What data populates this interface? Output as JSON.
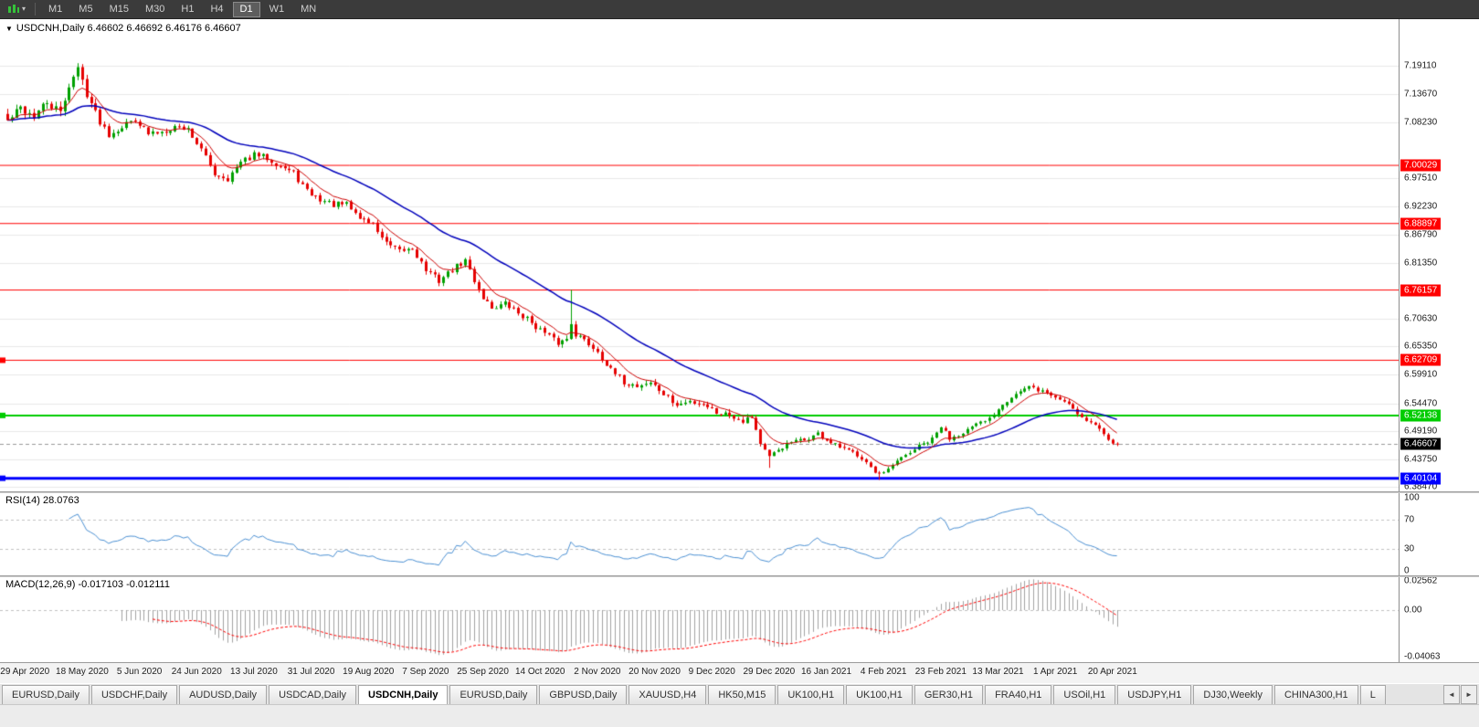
{
  "icons": {
    "chart_menu": "▼",
    "new_chart_caret": "▾",
    "tab_scroll_left": "◄",
    "tab_scroll_right": "►"
  },
  "toolbar": {
    "timeframes": [
      "M1",
      "M5",
      "M15",
      "M30",
      "H1",
      "H4",
      "D1",
      "W1",
      "MN"
    ],
    "active_timeframe": "D1"
  },
  "chart": {
    "title_line": "USDCNH,Daily 6.46602 6.46692 6.46176 6.46607",
    "symbol": "USDCNH",
    "period": "Daily",
    "open": "6.46602",
    "high": "6.46692",
    "low": "6.46176",
    "close": "6.46607"
  },
  "price_axis": {
    "plain_labels": [
      "7.19110",
      "7.13670",
      "7.08230",
      "6.97510",
      "6.92230",
      "6.86790",
      "6.81350",
      "6.70630",
      "6.65350",
      "6.59910",
      "6.54470",
      "6.49190",
      "6.43750",
      "6.38470"
    ],
    "levels": [
      {
        "value": 7.00029,
        "label": "7.00029",
        "color": "#ff0000",
        "width": 1,
        "handle": false
      },
      {
        "value": 6.88897,
        "label": "6.88897",
        "color": "#ff0000",
        "width": 1,
        "handle": false
      },
      {
        "value": 6.76157,
        "label": "6.76157",
        "color": "#ff0000",
        "width": 1,
        "handle": false
      },
      {
        "value": 6.62709,
        "label": "6.62709",
        "color": "#ff0000",
        "width": 1,
        "handle": true
      },
      {
        "value": 6.52138,
        "label": "6.52138",
        "color": "#00cc00",
        "width": 2,
        "handle": true
      },
      {
        "value": 6.40104,
        "label": "6.40104",
        "color": "#0000ff",
        "width": 3,
        "handle": true
      }
    ],
    "current_price": {
      "value": 6.46607,
      "label": "6.46607",
      "color": "#000000"
    }
  },
  "rsi_panel": {
    "label": "RSI(14) 28.0763",
    "period": 14,
    "value": 28.0763,
    "axis_labels": [
      "100",
      "70",
      "30",
      "0"
    ],
    "line_color": "#4a8fd2"
  },
  "macd_panel": {
    "label": "MACD(12,26,9) -0.017103 -0.012111",
    "params": "12,26,9",
    "main_value": -0.017103,
    "signal_value": -0.012111,
    "axis_labels": [
      "0.02562",
      "0.00",
      "-0.04063"
    ],
    "hist_color": "#a2a2a2",
    "signal_color": "#ff0000"
  },
  "date_axis": [
    "29 Apr 2020",
    "18 May 2020",
    "5 Jun 2020",
    "24 Jun 2020",
    "13 Jul 2020",
    "31 Jul 2020",
    "19 Aug 2020",
    "7 Sep 2020",
    "25 Sep 2020",
    "14 Oct 2020",
    "2 Nov 2020",
    "20 Nov 2020",
    "9 Dec 2020",
    "29 Dec 2020",
    "16 Jan 2021",
    "4 Feb 2021",
    "23 Feb 2021",
    "13 Mar 2021",
    "1 Apr 2021",
    "20 Apr 2021"
  ],
  "tabs": [
    "EURUSD,Daily",
    "USDCHF,Daily",
    "AUDUSD,Daily",
    "USDCAD,Daily",
    "USDCNH,Daily",
    "EURUSD,Daily",
    "GBPUSD,Daily",
    "XAUUSD,H4",
    "HK50,M15",
    "UK100,H1",
    "UK100,H1",
    "GER30,H1",
    "FRA40,H1",
    "USOil,H1",
    "USDJPY,H1",
    "DJ30,Weekly",
    "CHINA300,H1",
    "L"
  ],
  "active_tab": "USDCNH,Daily",
  "chart_data": {
    "type": "candlestick",
    "symbol": "USDCNH",
    "timeframe": "Daily",
    "title": "USDCNH,Daily",
    "ohlc_display": {
      "open": 6.46602,
      "high": 6.46692,
      "low": 6.46176,
      "close": 6.46607
    },
    "y_axis_range": [
      6.3847,
      7.1911
    ],
    "x_tick_labels": [
      "29 Apr 2020",
      "18 May 2020",
      "5 Jun 2020",
      "24 Jun 2020",
      "13 Jul 2020",
      "31 Jul 2020",
      "19 Aug 2020",
      "7 Sep 2020",
      "25 Sep 2020",
      "14 Oct 2020",
      "2 Nov 2020",
      "20 Nov 2020",
      "9 Dec 2020",
      "29 Dec 2020",
      "16 Jan 2021",
      "4 Feb 2021",
      "23 Feb 2021",
      "13 Mar 2021",
      "1 Apr 2021",
      "20 Apr 2021"
    ],
    "horizontal_levels": [
      7.00029,
      6.88897,
      6.76157,
      6.62709,
      6.52138,
      6.40104
    ],
    "candle_count": 253,
    "last_close": 6.46607,
    "seed": 42,
    "up_color": "#00a000",
    "down_color": "#e60000",
    "ma_fast": {
      "period": 8,
      "color": "#cc0000"
    },
    "ma_slow": {
      "period": 34,
      "color": "#0000bb"
    },
    "indicators": {
      "rsi": {
        "period": 14,
        "last_value": 28.0763
      },
      "macd": {
        "fast": 12,
        "slow": 26,
        "signal": 9,
        "last_main": -0.017103,
        "last_signal": -0.012111
      }
    },
    "price_anchors": [
      [
        0,
        7.085
      ],
      [
        3,
        7.11
      ],
      [
        6,
        7.095
      ],
      [
        9,
        7.12
      ],
      [
        12,
        7.1
      ],
      [
        14,
        7.155
      ],
      [
        16,
        7.185
      ],
      [
        18,
        7.14
      ],
      [
        20,
        7.1
      ],
      [
        23,
        7.06
      ],
      [
        26,
        7.075
      ],
      [
        29,
        7.09
      ],
      [
        32,
        7.06
      ],
      [
        35,
        7.065
      ],
      [
        38,
        7.075
      ],
      [
        41,
        7.07
      ],
      [
        44,
        7.03
      ],
      [
        47,
        6.985
      ],
      [
        50,
        6.975
      ],
      [
        53,
        7.005
      ],
      [
        56,
        7.02
      ],
      [
        59,
        7.015
      ],
      [
        62,
        7.0
      ],
      [
        65,
        6.985
      ],
      [
        68,
        6.95
      ],
      [
        71,
        6.935
      ],
      [
        74,
        6.925
      ],
      [
        77,
        6.925
      ],
      [
        80,
        6.9
      ],
      [
        83,
        6.888
      ],
      [
        86,
        6.85
      ],
      [
        89,
        6.835
      ],
      [
        92,
        6.842
      ],
      [
        95,
        6.8
      ],
      [
        98,
        6.78
      ],
      [
        101,
        6.8
      ],
      [
        104,
        6.818
      ],
      [
        106,
        6.78
      ],
      [
        108,
        6.748
      ],
      [
        110,
        6.728
      ],
      [
        113,
        6.735
      ],
      [
        116,
        6.718
      ],
      [
        119,
        6.7
      ],
      [
        122,
        6.678
      ],
      [
        125,
        6.66
      ],
      [
        127,
        6.668
      ],
      [
        128,
        6.7
      ],
      [
        129,
        6.678
      ],
      [
        131,
        6.665
      ],
      [
        134,
        6.645
      ],
      [
        137,
        6.607
      ],
      [
        140,
        6.585
      ],
      [
        143,
        6.578
      ],
      [
        146,
        6.585
      ],
      [
        149,
        6.562
      ],
      [
        152,
        6.54
      ],
      [
        155,
        6.548
      ],
      [
        158,
        6.545
      ],
      [
        161,
        6.528
      ],
      [
        164,
        6.523
      ],
      [
        167,
        6.513
      ],
      [
        169,
        6.52
      ],
      [
        171,
        6.468
      ],
      [
        173,
        6.44
      ],
      [
        175,
        6.456
      ],
      [
        178,
        6.47
      ],
      [
        181,
        6.474
      ],
      [
        184,
        6.486
      ],
      [
        187,
        6.468
      ],
      [
        190,
        6.456
      ],
      [
        193,
        6.447
      ],
      [
        195,
        6.435
      ],
      [
        197,
        6.41
      ],
      [
        199,
        6.408
      ],
      [
        201,
        6.425
      ],
      [
        204,
        6.445
      ],
      [
        207,
        6.462
      ],
      [
        210,
        6.475
      ],
      [
        212,
        6.5
      ],
      [
        214,
        6.478
      ],
      [
        217,
        6.49
      ],
      [
        220,
        6.502
      ],
      [
        223,
        6.515
      ],
      [
        226,
        6.545
      ],
      [
        229,
        6.563
      ],
      [
        232,
        6.575
      ],
      [
        235,
        6.568
      ],
      [
        238,
        6.556
      ],
      [
        241,
        6.545
      ],
      [
        244,
        6.518
      ],
      [
        247,
        6.503
      ],
      [
        250,
        6.478
      ],
      [
        252,
        6.466
      ]
    ],
    "spike_candles": [
      {
        "i": 16,
        "high": 7.196
      },
      {
        "i": 128,
        "high": 6.762
      },
      {
        "i": 173,
        "low": 6.421
      },
      {
        "i": 198,
        "low": 6.398
      }
    ]
  }
}
